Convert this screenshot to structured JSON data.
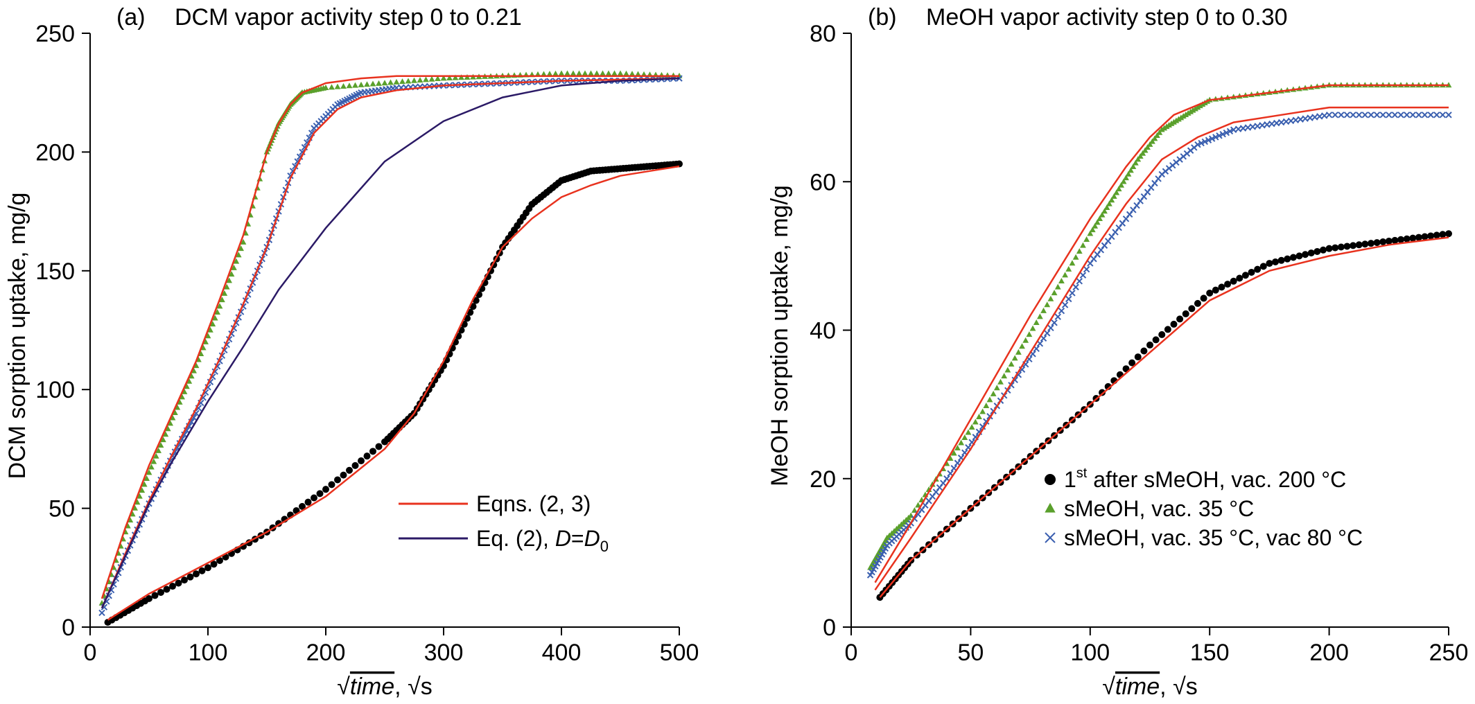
{
  "chart_data": [
    {
      "type": "scatter",
      "panel_label": "(a)",
      "title": "DCM vapor activity step 0 to 0.21",
      "xlabel": {
        "sqrt_sign": "√",
        "var": "time",
        "sep": ",",
        "unit": "√s"
      },
      "ylabel": "DCM sorption uptake, mg/g",
      "xlim": [
        0,
        500
      ],
      "ylim": [
        0,
        250
      ],
      "xticks": [
        "0",
        "100",
        "200",
        "300",
        "400",
        "500"
      ],
      "yticks": [
        "0",
        "50",
        "100",
        "150",
        "200",
        "250"
      ],
      "xtick_values": [
        0,
        100,
        200,
        300,
        400,
        500
      ],
      "ytick_values": [
        0,
        50,
        100,
        150,
        200,
        250
      ],
      "grid": false,
      "legend_position": "lower-right",
      "legend": [
        {
          "label": "Eqns. (2, 3)",
          "color": "#e8321e",
          "kind": "line"
        },
        {
          "label_prefix": "Eq. (2), ",
          "label_var": "D",
          "label_eq": "=",
          "label_var2": "D",
          "label_sub": "0",
          "color": "#2b1a66",
          "kind": "line"
        }
      ],
      "series": [
        {
          "kind": "points",
          "marker": "triangle",
          "color": "#5aa02c",
          "x": [
            10,
            30,
            50,
            70,
            90,
            110,
            130,
            150,
            160,
            170,
            180,
            200,
            250,
            300,
            350,
            400,
            450,
            500
          ],
          "y": [
            10,
            40,
            65,
            88,
            110,
            135,
            162,
            200,
            212,
            220,
            225,
            227,
            229,
            231,
            232,
            233,
            233,
            232
          ]
        },
        {
          "kind": "points",
          "marker": "cross",
          "color": "#3a5faf",
          "x": [
            10,
            30,
            50,
            70,
            90,
            110,
            130,
            150,
            170,
            190,
            210,
            230,
            260,
            300,
            350,
            400,
            450,
            500
          ],
          "y": [
            6,
            30,
            52,
            72,
            90,
            112,
            135,
            160,
            190,
            210,
            220,
            225,
            227,
            228,
            229,
            230,
            230,
            231
          ]
        },
        {
          "kind": "points",
          "marker": "circle",
          "color": "#000000",
          "x": [
            15,
            50,
            100,
            150,
            200,
            250,
            275,
            300,
            325,
            350,
            375,
            400,
            425,
            450,
            475,
            500
          ],
          "y": [
            2,
            12,
            25,
            40,
            58,
            78,
            90,
            110,
            135,
            160,
            178,
            188,
            192,
            193,
            194,
            195
          ]
        },
        {
          "kind": "line",
          "color": "#e8321e",
          "name": "Eqns. (2, 3)",
          "x": [
            10,
            30,
            50,
            70,
            90,
            110,
            130,
            150,
            160,
            170,
            180,
            200,
            230,
            260,
            300,
            400,
            500
          ],
          "y": [
            12,
            42,
            68,
            90,
            112,
            138,
            165,
            200,
            212,
            220,
            225,
            229,
            231,
            232,
            232,
            232,
            232
          ]
        },
        {
          "kind": "line",
          "color": "#e8321e",
          "name": "Eqns. (2, 3)",
          "x": [
            10,
            30,
            50,
            70,
            90,
            110,
            130,
            150,
            170,
            190,
            210,
            230,
            260,
            300,
            350,
            400,
            500
          ],
          "y": [
            8,
            31,
            53,
            73,
            92,
            113,
            136,
            160,
            189,
            208,
            218,
            223,
            226,
            228,
            229,
            230,
            231
          ]
        },
        {
          "kind": "line",
          "color": "#2b1a66",
          "name": "Eq. (2), D=D0",
          "x": [
            10,
            30,
            50,
            70,
            100,
            130,
            160,
            200,
            250,
            300,
            350,
            400,
            450,
            500
          ],
          "y": [
            8,
            30,
            52,
            70,
            95,
            118,
            142,
            168,
            196,
            213,
            223,
            228,
            230,
            231
          ]
        },
        {
          "kind": "line",
          "color": "#e8321e",
          "name": "Eqns. (2, 3)",
          "x": [
            15,
            50,
            100,
            150,
            200,
            250,
            275,
            300,
            325,
            350,
            375,
            400,
            425,
            450,
            475,
            500
          ],
          "y": [
            3,
            14,
            27,
            40,
            55,
            75,
            90,
            112,
            138,
            160,
            172,
            181,
            186,
            190,
            192,
            194
          ]
        }
      ]
    },
    {
      "type": "scatter",
      "panel_label": "(b)",
      "title": "MeOH vapor activity step 0 to 0.30",
      "xlabel": {
        "sqrt_sign": "√",
        "var": "time",
        "sep": ",",
        "unit": "√s"
      },
      "ylabel": "MeOH sorption uptake, mg/g",
      "xlim": [
        0,
        250
      ],
      "ylim": [
        0,
        80
      ],
      "xticks": [
        "0",
        "50",
        "100",
        "150",
        "200",
        "250"
      ],
      "yticks": [
        "0",
        "20",
        "40",
        "60",
        "80"
      ],
      "xtick_values": [
        0,
        50,
        100,
        150,
        200,
        250
      ],
      "ytick_values": [
        0,
        20,
        40,
        60,
        80
      ],
      "grid": false,
      "legend_position": "lower-right",
      "legend": [
        {
          "label_pre": "1",
          "label_sup": "st",
          "label_post": " after sMeOH, vac. 200 °C",
          "marker": "circle",
          "color": "#000000"
        },
        {
          "label": "sMeOH, vac. 35 °C",
          "marker": "triangle",
          "color": "#5aa02c"
        },
        {
          "label": "sMeOH, vac. 35 °C, vac 80 °C",
          "marker": "cross",
          "color": "#3a5faf"
        }
      ],
      "series": [
        {
          "kind": "points",
          "marker": "triangle",
          "color": "#5aa02c",
          "x": [
            8,
            15,
            25,
            40,
            55,
            70,
            85,
            100,
            110,
            120,
            130,
            140,
            150,
            175,
            200,
            225,
            250
          ],
          "y": [
            8,
            12,
            15,
            22,
            29,
            37,
            45,
            53,
            58,
            63,
            67,
            69,
            71,
            72,
            73,
            73,
            73
          ]
        },
        {
          "kind": "points",
          "marker": "cross",
          "color": "#3a5faf",
          "x": [
            8,
            15,
            25,
            40,
            55,
            70,
            85,
            100,
            115,
            130,
            145,
            160,
            180,
            200,
            225,
            250
          ],
          "y": [
            7,
            11,
            14,
            20,
            27,
            34,
            41,
            49,
            55,
            61,
            65,
            67,
            68,
            69,
            69,
            69
          ]
        },
        {
          "kind": "points",
          "marker": "circle",
          "color": "#000000",
          "x": [
            12,
            25,
            50,
            75,
            100,
            125,
            150,
            175,
            200,
            225,
            250
          ],
          "y": [
            4,
            9,
            16,
            23,
            30,
            38,
            45,
            49,
            51,
            52,
            53
          ]
        },
        {
          "kind": "line",
          "color": "#e8321e",
          "x": [
            10,
            25,
            50,
            75,
            100,
            115,
            125,
            135,
            150,
            175,
            200,
            225,
            250
          ],
          "y": [
            6,
            14,
            28,
            42,
            55,
            62,
            66,
            69,
            71,
            72,
            73,
            73,
            73
          ]
        },
        {
          "kind": "line",
          "color": "#e8321e",
          "x": [
            10,
            25,
            50,
            75,
            100,
            115,
            130,
            145,
            160,
            180,
            200,
            225,
            250
          ],
          "y": [
            5,
            12,
            24,
            37,
            50,
            57,
            63,
            66,
            68,
            69,
            70,
            70,
            70
          ]
        },
        {
          "kind": "line",
          "color": "#e8321e",
          "x": [
            12,
            25,
            50,
            75,
            100,
            125,
            150,
            175,
            200,
            225,
            250
          ],
          "y": [
            4,
            9,
            16,
            23,
            30,
            37,
            44,
            48,
            50,
            51.5,
            52.5
          ]
        }
      ]
    }
  ]
}
